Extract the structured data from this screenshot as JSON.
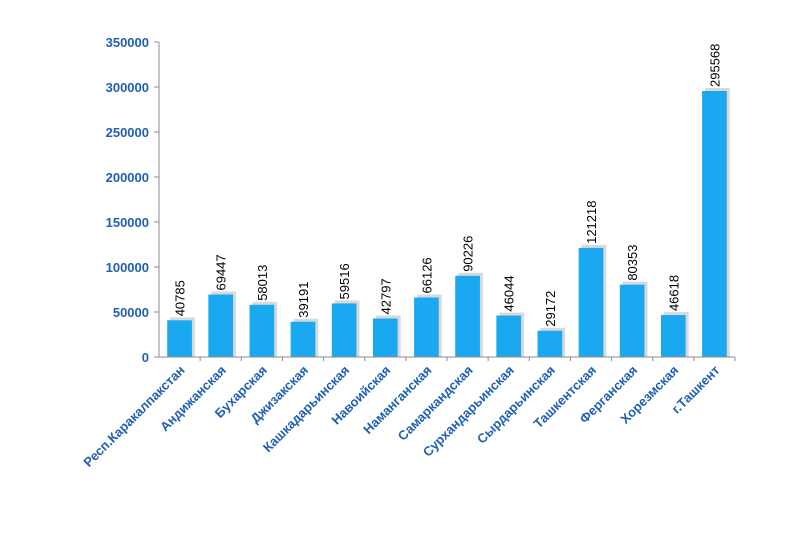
{
  "chart_data": {
    "type": "bar",
    "categories": [
      "Респ.Каракалпакстан",
      "Андижанская",
      "Бухарская",
      "Джизакская",
      "Кашкадарьинская",
      "Навоийская",
      "Наманганская",
      "Самаркандская",
      "Сурхандарьинская",
      "Сырдарьинская",
      "Ташкентская",
      "Ферганская",
      "Хорезмская",
      "г.Ташкент"
    ],
    "values": [
      40785,
      69447,
      58013,
      39191,
      59516,
      42797,
      66126,
      90226,
      46044,
      29172,
      121218,
      80353,
      46618,
      295568
    ],
    "data_labels": [
      "40785",
      "69447",
      "58013",
      "39191",
      "59516",
      "42797",
      "66126",
      "90226",
      "46044",
      "29172",
      "121218",
      "80353",
      "46618",
      "295568"
    ],
    "y_ticks": [
      0,
      50000,
      100000,
      150000,
      200000,
      250000,
      300000,
      350000
    ],
    "y_tick_labels": [
      "0",
      "50000",
      "100000",
      "150000",
      "200000",
      "250000",
      "300000",
      "350000"
    ],
    "ylim": [
      0,
      350000
    ],
    "title": "",
    "xlabel": "",
    "ylabel": "",
    "grid": false,
    "legend": "none",
    "colors": {
      "bar": "#1aa9f0",
      "axis_text": "#1f5fb4",
      "data_label": "#000000",
      "axis_line": "#8c8c8c"
    }
  }
}
